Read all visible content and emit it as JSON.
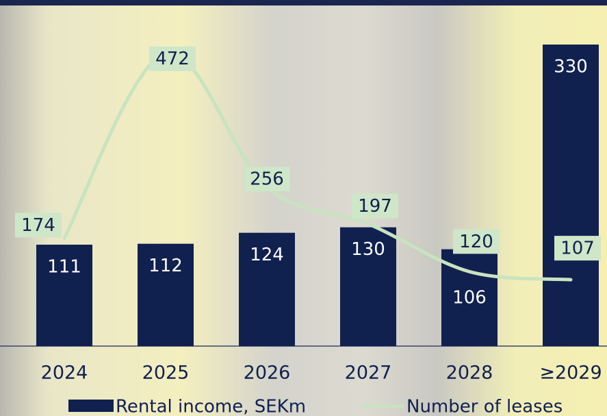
{
  "chart_data": {
    "type": "bar_line",
    "categories": [
      "2024",
      "2025",
      "2026",
      "2027",
      "2028",
      "≥2029"
    ],
    "series": [
      {
        "name": "Rental income, SEKm",
        "type": "bar",
        "color": "#10204f",
        "values": [
          111,
          112,
          124,
          130,
          106,
          330
        ]
      },
      {
        "name": "Number of leases",
        "type": "line",
        "color": "#c8e3c0",
        "axis": "y2",
        "values": [
          174,
          472,
          256,
          197,
          120,
          107
        ]
      }
    ],
    "ylim": [
      0,
      330
    ],
    "y2lim": [
      0,
      486
    ]
  }
}
